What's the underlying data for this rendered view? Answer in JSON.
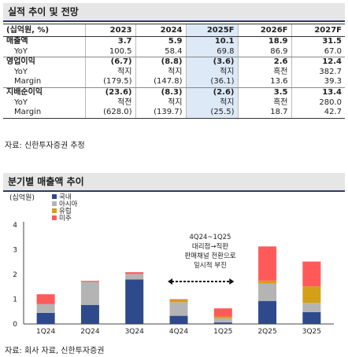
{
  "table": {
    "title": "실적 추이 및 전망",
    "unit_label": "(십억원, %)",
    "columns": [
      "2023",
      "2024",
      "2025F",
      "2026F",
      "2027F"
    ],
    "rows": [
      {
        "label": "매출액",
        "values": [
          "3.7",
          "5.9",
          "10.1",
          "18.9",
          "31.5"
        ]
      },
      {
        "label": "YoY",
        "values": [
          "100.5",
          "58.4",
          "69.8",
          "86.9",
          "67.0"
        ]
      },
      {
        "label": "영업이익",
        "values": [
          "(6.7)",
          "(8.8)",
          "(3.6)",
          "2.6",
          "12.4"
        ]
      },
      {
        "label": "YoY",
        "values": [
          "적지",
          "적지",
          "적지",
          "흑전",
          "382.7"
        ]
      },
      {
        "label": "Margin",
        "values": [
          "(179.5)",
          "(147.8)",
          "(36.1)",
          "13.6",
          "39.3"
        ]
      },
      {
        "label": "지배순이익",
        "values": [
          "(23.6)",
          "(8.3)",
          "(2.6)",
          "3.5",
          "13.4"
        ]
      },
      {
        "label": "YoY",
        "values": [
          "적전",
          "적지",
          "적지",
          "흑전",
          "280.0"
        ]
      },
      {
        "label": "Margin",
        "values": [
          "(628.0)",
          "(139.7)",
          "(25.5)",
          "18.7",
          "42.7"
        ]
      }
    ],
    "source": "자료: 신한투자증권 추정"
  },
  "chart_data": {
    "type": "bar",
    "title": "분기별 매출액 추이",
    "ylabel": "(십억원)",
    "ylim": [
      0,
      4
    ],
    "yticks": [
      0,
      1,
      2,
      3,
      4
    ],
    "categories": [
      "1Q24",
      "2Q24",
      "3Q24",
      "4Q24",
      "1Q25",
      "2Q25",
      "3Q25"
    ],
    "stacked": true,
    "series": [
      {
        "name": "국내",
        "color": "#2e4a8c",
        "values": [
          0.45,
          0.77,
          1.8,
          0.33,
          0.06,
          0.93,
          0.48
        ]
      },
      {
        "name": "아시아",
        "color": "#b4b4b4",
        "values": [
          0.35,
          0.93,
          0.22,
          0.55,
          0.17,
          0.7,
          0.37
        ]
      },
      {
        "name": "유럽",
        "color": "#d4a017",
        "values": [
          0.0,
          0.0,
          0.0,
          0.09,
          0.07,
          0.12,
          0.67
        ]
      },
      {
        "name": "미주",
        "color": "#ff5a5a",
        "values": [
          0.4,
          0.04,
          0.07,
          0.03,
          0.33,
          1.38,
          1.0
        ]
      }
    ],
    "legend_position": "top-left",
    "grid": false,
    "annotation": {
      "lines": [
        "4Q24~1Q25",
        "대리점→직판",
        "판매채널 전환으로",
        "일시적 부진"
      ]
    },
    "source": "자료: 회사 자료, 신한투자증권"
  }
}
